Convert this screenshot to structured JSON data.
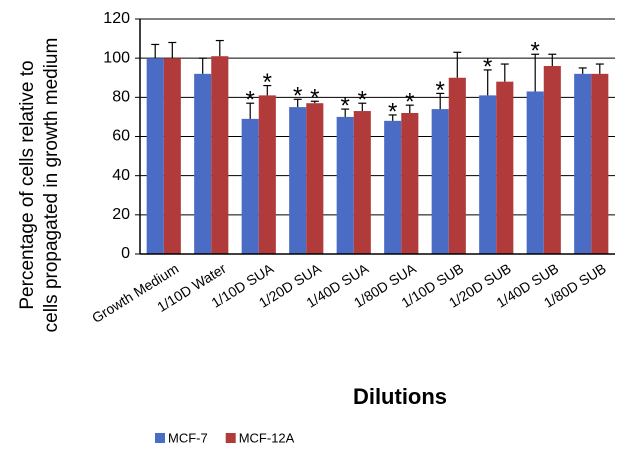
{
  "chart_data": {
    "type": "bar",
    "x_label": "Dilutions",
    "y_label": [
      "Percentage of cells relative to",
      "cells propagated in growth medium"
    ],
    "categories": [
      "Growth Medium",
      "1/10D Water",
      "1/10D SUA",
      "1/20D SUA",
      "1/40D SUA",
      "1/80D SUA",
      "1/10D SUB",
      "1/20D SUB",
      "1/40D SUB",
      "1/80D SUB"
    ],
    "series": [
      {
        "name": "MCF-7",
        "color": "#4a6cc4",
        "values": [
          100,
          92,
          69,
          75,
          70,
          68,
          74,
          81,
          83,
          92
        ],
        "errors": [
          7,
          8,
          8,
          4,
          4,
          3,
          8,
          13,
          19,
          3
        ],
        "markers": [
          null,
          null,
          "*",
          "*",
          "*",
          "*",
          "*",
          "*",
          "*",
          null
        ]
      },
      {
        "name": "MCF-12A",
        "color": "#b03b3a",
        "values": [
          100,
          101,
          81,
          77,
          73,
          72,
          90,
          88,
          96,
          92
        ],
        "errors": [
          8,
          8,
          5,
          1,
          4,
          4,
          13,
          9,
          6,
          5
        ],
        "markers": [
          null,
          null,
          "*",
          "*",
          "*",
          "*",
          null,
          null,
          null,
          null
        ]
      }
    ],
    "ylim": [
      0,
      120
    ],
    "yticks": [
      0,
      20,
      40,
      60,
      80,
      100,
      120
    ],
    "grid": true,
    "legend": "bottom"
  }
}
